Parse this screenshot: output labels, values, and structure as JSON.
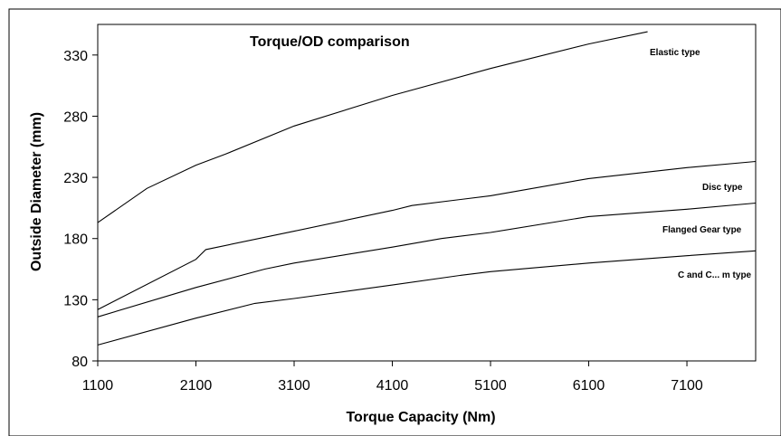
{
  "chart_data": {
    "type": "line",
    "title": "Torque/OD comparison",
    "xlabel": "Torque Capacity (Nm)",
    "ylabel": "Outside Diameter (mm)",
    "xlim": [
      1100,
      7800
    ],
    "ylim": [
      80,
      355
    ],
    "xticks": [
      1100,
      2100,
      3100,
      4100,
      5100,
      6100,
      7100
    ],
    "yticks": [
      80,
      130,
      180,
      230,
      280,
      330
    ],
    "grid": false,
    "legend": "none",
    "series": [
      {
        "name": "Elastic type",
        "x": [
          1100,
          1600,
          2100,
          2400,
          3100,
          4100,
          5100,
          6100,
          6700
        ],
        "y": [
          193,
          221,
          240,
          249,
          272,
          297,
          319,
          339,
          349
        ]
      },
      {
        "name": "Disc type",
        "x": [
          1100,
          2100,
          2200,
          3100,
          4100,
          4300,
          5100,
          6100,
          7100,
          7800
        ],
        "y": [
          122,
          163,
          171,
          186,
          203,
          207,
          215,
          229,
          238,
          243
        ]
      },
      {
        "name": "Flanged Gear type",
        "x": [
          1100,
          2100,
          2800,
          3100,
          4100,
          4600,
          5100,
          6100,
          7100,
          7800
        ],
        "y": [
          116,
          140,
          155,
          160,
          173,
          180,
          185,
          198,
          204,
          209
        ]
      },
      {
        "name": "C and C... m type",
        "x": [
          1100,
          2100,
          2700,
          3100,
          4100,
          4800,
          5100,
          6100,
          7100,
          7800
        ],
        "y": [
          93,
          115,
          127,
          131,
          142,
          150,
          153,
          160,
          166,
          170
        ]
      }
    ]
  }
}
